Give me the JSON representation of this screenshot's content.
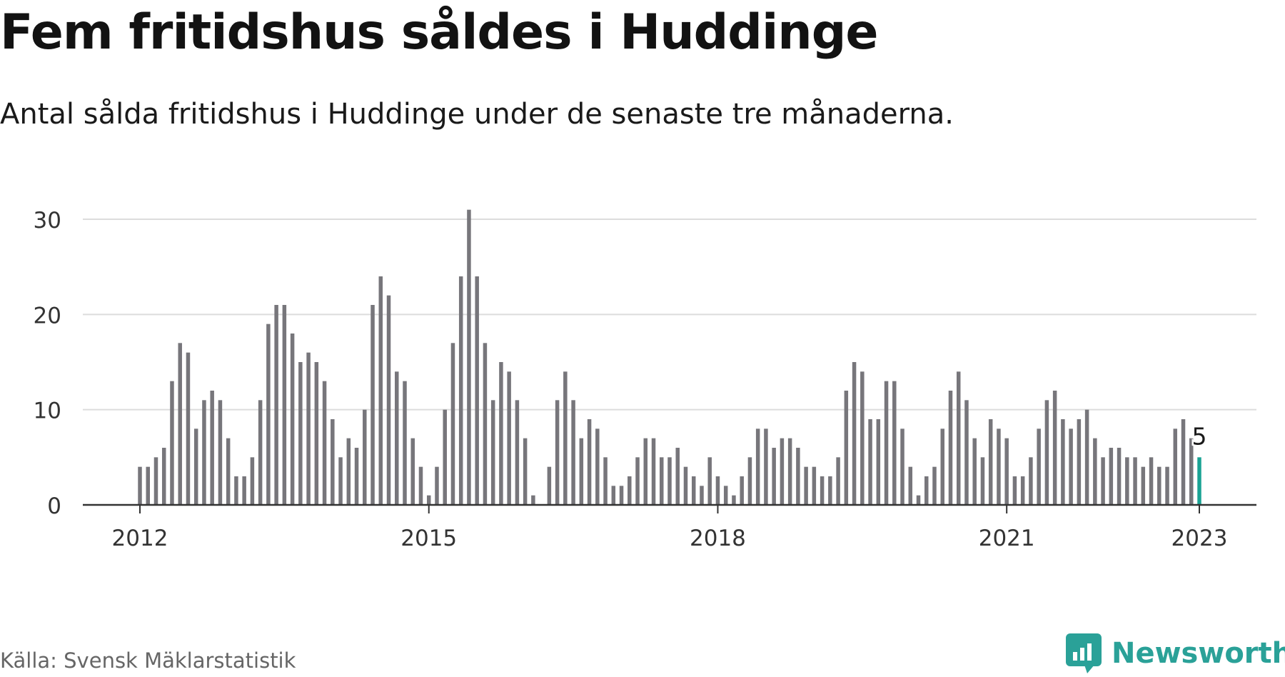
{
  "header": {
    "title": "Fem fritidshus såldes i Huddinge",
    "subtitle": "Antal sålda fritidshus i Huddinge under de senaste tre månaderna."
  },
  "footer": {
    "source": "Källa: Svensk Mäklarstatistik",
    "brand": "Newsworthy"
  },
  "colors": {
    "bar": "#77767b",
    "highlight": "#1aa394",
    "grid": "#dcdcdc",
    "axis": "#333333",
    "brand": "#2aa198"
  },
  "chart_data": {
    "type": "bar",
    "x_start": "2012-01",
    "x_interval": "month",
    "xticks": [
      "2012",
      "2015",
      "2018",
      "2021",
      "2023"
    ],
    "yticks": [
      0,
      10,
      20,
      30
    ],
    "ylim": [
      0,
      32
    ],
    "grid": true,
    "highlight_label": "5",
    "values": [
      4,
      4,
      5,
      6,
      13,
      17,
      16,
      8,
      11,
      12,
      11,
      7,
      3,
      3,
      5,
      11,
      19,
      21,
      21,
      18,
      15,
      16,
      15,
      13,
      9,
      5,
      7,
      6,
      10,
      21,
      24,
      22,
      14,
      13,
      7,
      4,
      1,
      4,
      10,
      17,
      24,
      31,
      24,
      17,
      11,
      15,
      14,
      11,
      7,
      1,
      0,
      4,
      11,
      14,
      11,
      7,
      9,
      8,
      5,
      2,
      2,
      3,
      5,
      7,
      7,
      5,
      5,
      6,
      4,
      3,
      2,
      5,
      3,
      2,
      1,
      3,
      5,
      8,
      8,
      6,
      7,
      7,
      6,
      4,
      4,
      3,
      3,
      5,
      12,
      15,
      14,
      9,
      9,
      13,
      13,
      8,
      4,
      1,
      3,
      4,
      8,
      12,
      14,
      11,
      7,
      5,
      9,
      8,
      7,
      3,
      3,
      5,
      8,
      11,
      12,
      9,
      8,
      9,
      10,
      7,
      5,
      6,
      6,
      5,
      5,
      4,
      5,
      4,
      4,
      8,
      9,
      7,
      5
    ]
  }
}
